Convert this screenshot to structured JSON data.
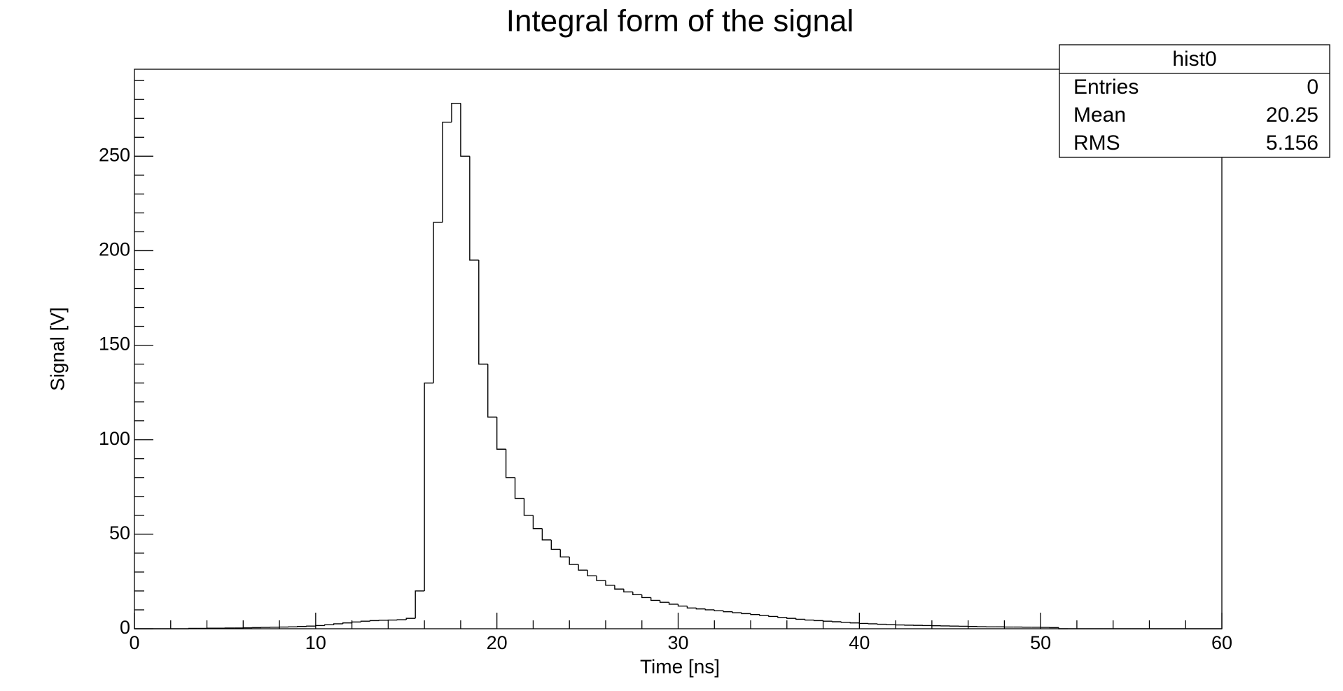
{
  "chart_data": {
    "type": "histogram",
    "title": "Integral form of the signal",
    "x_label": "Time [ns]",
    "y_label": "Signal [V]",
    "bins": [
      0,
      0.5,
      1,
      1.5,
      2,
      2.5,
      3,
      3.5,
      4,
      4.5,
      5,
      5.5,
      6,
      6.5,
      7,
      7.5,
      8,
      8.5,
      9,
      9.5,
      10,
      10.5,
      11,
      11.5,
      12,
      12.5,
      13,
      13.5,
      14,
      14.5,
      15,
      15.5,
      16,
      16.5,
      17,
      17.5,
      18,
      18.5,
      19,
      19.5,
      20,
      20.5,
      21,
      21.5,
      22,
      22.5,
      23,
      23.5,
      24,
      24.5,
      25,
      25.5,
      26,
      26.5,
      27,
      27.5,
      28,
      28.5,
      29,
      29.5,
      30,
      30.5,
      31,
      31.5,
      32,
      32.5,
      33,
      33.5,
      34,
      34.5,
      35,
      35.5,
      36,
      36.5,
      37,
      37.5,
      38,
      38.5,
      39,
      39.5,
      40,
      40.5,
      41,
      41.5,
      42,
      42.5,
      43,
      43.5,
      44,
      44.5,
      45,
      45.5,
      46,
      46.5,
      47,
      47.5,
      48,
      48.5,
      49,
      49.5,
      50,
      50.5,
      51,
      51.5,
      52,
      52.5,
      53,
      53.5,
      54,
      54.5,
      55,
      55.5,
      56,
      56.5,
      57,
      57.5,
      58,
      58.5,
      59,
      59.5,
      60
    ],
    "counts": [
      0,
      0,
      0,
      0,
      0,
      0,
      0.2,
      0.2,
      0.3,
      0.3,
      0.4,
      0.4,
      0.5,
      0.6,
      0.7,
      0.8,
      0.9,
      1.0,
      1.2,
      1.4,
      1.7,
      2.1,
      2.6,
      3.1,
      3.6,
      4.0,
      4.3,
      4.5,
      4.6,
      4.8,
      5.5,
      20,
      130,
      215,
      268,
      278,
      250,
      195,
      140,
      112,
      95,
      80,
      69,
      60,
      53,
      47,
      42,
      38,
      34,
      31,
      28,
      25.5,
      23,
      21,
      19.5,
      18,
      16.5,
      15,
      14,
      13,
      12,
      11,
      10.5,
      10,
      9.5,
      9,
      8.5,
      8,
      7.5,
      7,
      6.5,
      6,
      5.5,
      5,
      4.6,
      4.3,
      4,
      3.7,
      3.4,
      3.1,
      2.8,
      2.6,
      2.4,
      2.2,
      2,
      1.9,
      1.8,
      1.7,
      1.6,
      1.5,
      1.4,
      1.3,
      1.2,
      1.1,
      1,
      1,
      0.9,
      0.9,
      0.8,
      0.8,
      0.7,
      0.6,
      0,
      0,
      0,
      0,
      0,
      0,
      0,
      0,
      0,
      0,
      0,
      0,
      0,
      0,
      0,
      0,
      0,
      0
    ],
    "color": "#000000",
    "xlim": [
      0,
      60
    ],
    "xticks": [
      0,
      10,
      20,
      30,
      40,
      50,
      60
    ],
    "xminor_ticks": [
      2,
      4,
      6,
      8,
      12,
      14,
      16,
      18,
      22,
      24,
      26,
      28,
      32,
      34,
      36,
      38,
      42,
      44,
      46,
      48,
      52,
      54,
      56,
      58
    ],
    "ylim": [
      0,
      296
    ],
    "yticks": [
      0,
      50,
      100,
      150,
      200,
      250
    ],
    "yminor_ticks": [
      10,
      20,
      30,
      40,
      60,
      70,
      80,
      90,
      110,
      120,
      130,
      140,
      160,
      170,
      180,
      190,
      210,
      220,
      230,
      240,
      260,
      270,
      280,
      290
    ],
    "stats": {
      "title": "hist0",
      "rows": [
        [
          "Entries",
          0
        ],
        [
          "Mean",
          20.25
        ],
        [
          "RMS",
          5.156
        ]
      ]
    }
  }
}
